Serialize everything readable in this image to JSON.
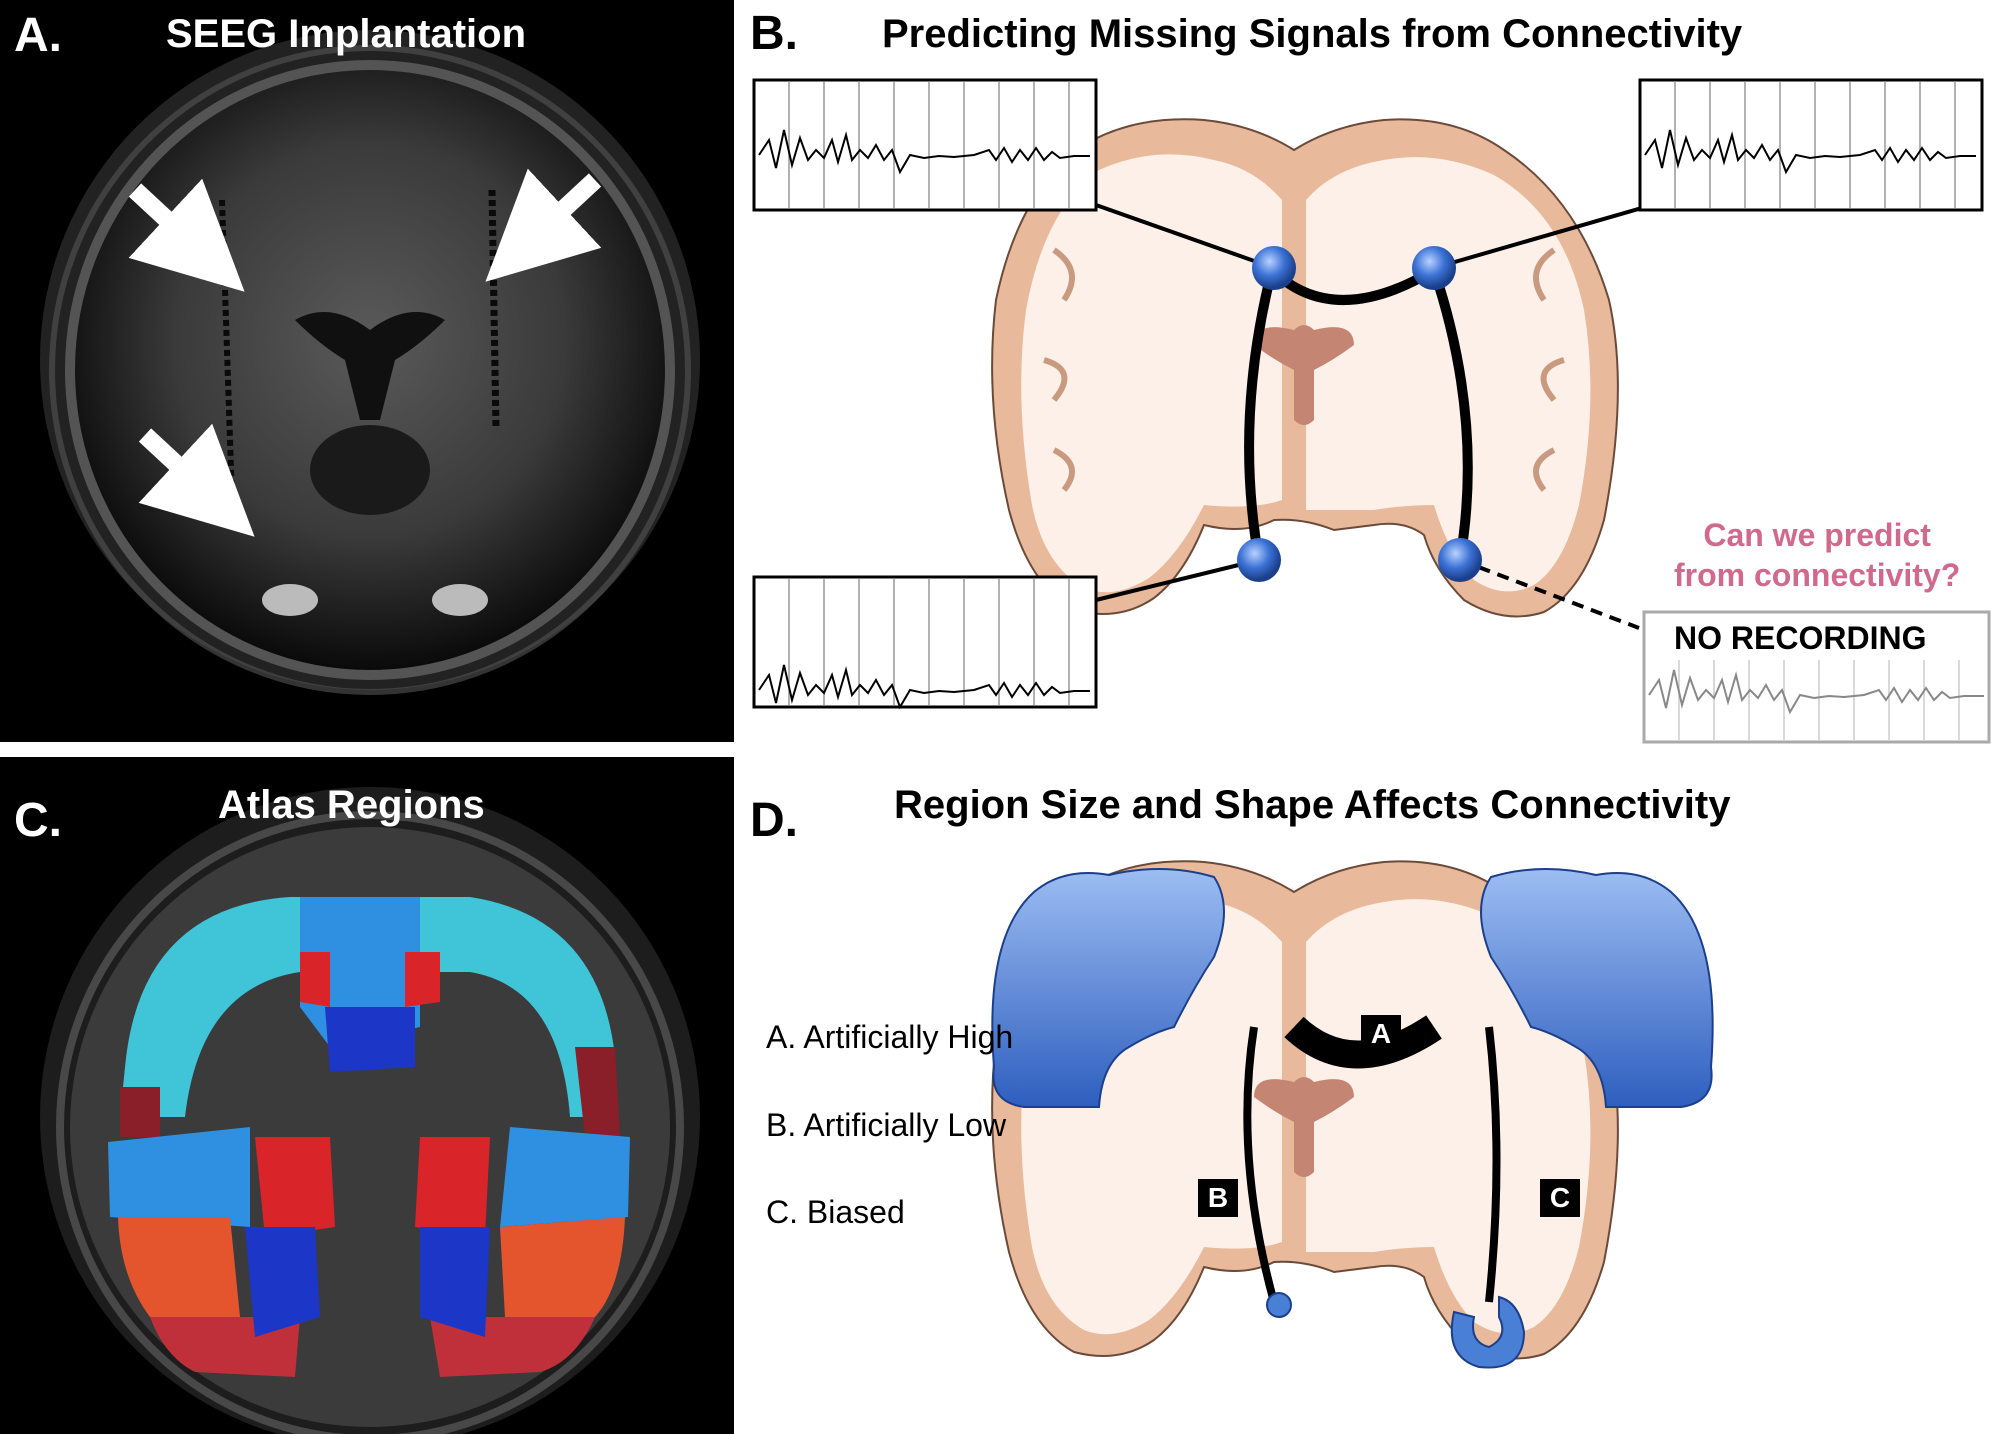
{
  "panels": {
    "a": {
      "letter": "A.",
      "title": "SEEG Implantation"
    },
    "b": {
      "letter": "B.",
      "title": "Predicting Missing Signals from Connectivity",
      "question_line1": "Can we predict",
      "question_line2": "from connectivity?",
      "no_recording": "NO RECORDING"
    },
    "c": {
      "letter": "C.",
      "title": "Atlas Regions"
    },
    "d": {
      "letter": "D.",
      "title": "Region Size and Shape Affects Connectivity",
      "legend": [
        "A. Artificially High",
        "B. Artificially Low",
        "C. Biased"
      ],
      "tags": {
        "a": "A",
        "b": "B",
        "c": "C"
      }
    }
  },
  "colors": {
    "brain_outer": "#e8b99b",
    "brain_inner": "#fdf0e8",
    "ventricle": "#c48672",
    "electrode_blue": "#2f62c6",
    "region_blue": "#4a7fd6",
    "question_pink": "#d06a8c",
    "atlas_cyan": "#3fc4d8",
    "atlas_blue": "#1c36c8",
    "atlas_red": "#d9242a",
    "atlas_orange": "#e4552e"
  }
}
